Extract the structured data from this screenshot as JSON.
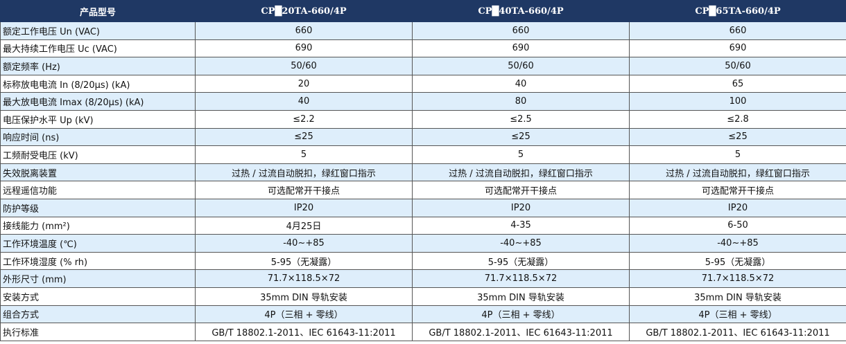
{
  "header": {
    "title": "产品型号",
    "models": [
      "CP█20TA-660/4P",
      "CP█40TA-660/4P",
      "CP█65TA-660/4P"
    ]
  },
  "colors": {
    "header_bg": "#1f3864",
    "row_alt": "#deeefb"
  },
  "rows": [
    {
      "label": "额定工作电压 Un (VAC)",
      "values": [
        "660",
        "660",
        "660"
      ]
    },
    {
      "label": "最大持续工作电压 Uc (VAC)",
      "values": [
        "690",
        "690",
        "690"
      ]
    },
    {
      "label": "额定频率 (Hz)",
      "values": [
        "50/60",
        "50/60",
        "50/60"
      ]
    },
    {
      "label": "标称放电电流 In (8/20μs) (kA)",
      "values": [
        "20",
        "40",
        "65"
      ]
    },
    {
      "label": "最大放电电流 Imax (8/20μs) (kA)",
      "values": [
        "40",
        "80",
        "100"
      ]
    },
    {
      "label": "电压保护水平 Up (kV)",
      "values": [
        "≤2.2",
        "≤2.5",
        "≤2.8"
      ]
    },
    {
      "label": "响应时间 (ns)",
      "values": [
        "≤25",
        "≤25",
        "≤25"
      ]
    },
    {
      "label": "工频耐受电压 (kV)",
      "values": [
        "5",
        "5",
        "5"
      ]
    },
    {
      "label": "失效脱离装置",
      "values": [
        "过热 / 过流自动脱扣，绿红窗口指示",
        "过热 / 过流自动脱扣，绿红窗口指示",
        "过热 / 过流自动脱扣，绿红窗口指示"
      ]
    },
    {
      "label": "远程遥信功能",
      "values": [
        "可选配常开干接点",
        "可选配常开干接点",
        "可选配常开干接点"
      ]
    },
    {
      "label": "防护等级",
      "values": [
        "IP20",
        "IP20",
        "IP20"
      ]
    },
    {
      "label": "接线能力 (mm²)",
      "values": [
        "4月25日",
        "4-35",
        "6-50"
      ]
    },
    {
      "label": "工作环境温度 (℃)",
      "values": [
        "-40~+85",
        "-40~+85",
        "-40~+85"
      ]
    },
    {
      "label": "工作环境湿度 (% rh)",
      "values": [
        "5-95（无凝露）",
        "5-95（无凝露）",
        "5-95（无凝露）"
      ]
    },
    {
      "label": "外形尺寸 (mm)",
      "values": [
        "71.7×118.5×72",
        "71.7×118.5×72",
        "71.7×118.5×72"
      ]
    },
    {
      "label": "安装方式",
      "values": [
        "35mm DIN 导轨安装",
        "35mm DIN 导轨安装",
        "35mm DIN 导轨安装"
      ]
    },
    {
      "label": "组合方式",
      "values": [
        "4P（三相 + 零线）",
        "4P（三相 + 零线）",
        "4P（三相 + 零线）"
      ]
    },
    {
      "label": "执行标准",
      "values": [
        "GB/T 18802.1-2011、IEC 61643-11:2011",
        "GB/T 18802.1-2011、IEC 61643-11:2011",
        "GB/T 18802.1-2011、IEC 61643-11:2011"
      ]
    }
  ]
}
